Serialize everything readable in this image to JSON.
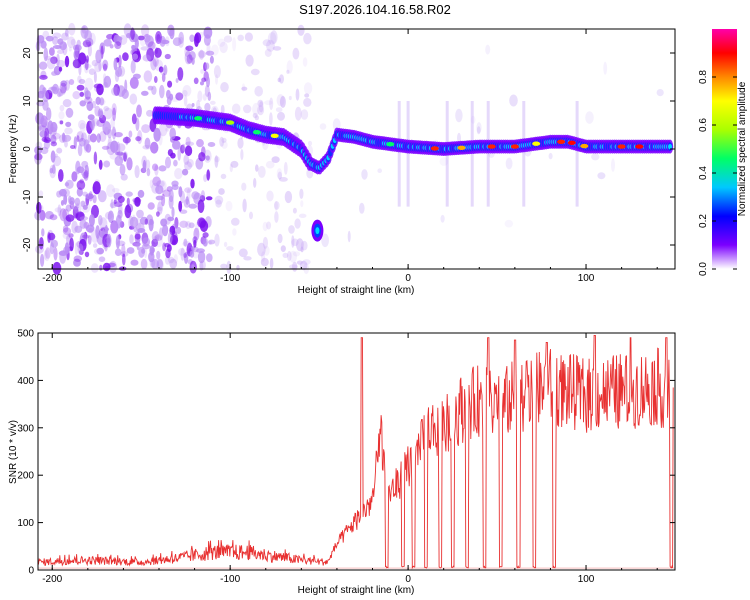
{
  "title": "S197.2026.104.16.58.R02",
  "colors": {
    "line": "#e83030",
    "axis": "#000000"
  },
  "chart_data": [
    {
      "type": "heatmap",
      "xlabel": "Height of straight line (km)",
      "ylabel": "Frequency (Hz)",
      "xlim": [
        -208,
        150
      ],
      "ylim": [
        -25,
        25
      ],
      "xticks": [
        -200,
        -100,
        0,
        100
      ],
      "yticks": [
        -20,
        -10,
        0,
        10,
        20
      ],
      "xtick_labels": [
        "-200",
        "-100",
        "0",
        "100"
      ],
      "ytick_labels": [
        "-20",
        "-10",
        "0",
        "10",
        "20"
      ],
      "ridge": [
        [
          -140,
          7
        ],
        [
          -120,
          6.5
        ],
        [
          -110,
          6
        ],
        [
          -100,
          5.5
        ],
        [
          -90,
          4
        ],
        [
          -80,
          3
        ],
        [
          -70,
          2.5
        ],
        [
          -60,
          0
        ],
        [
          -55,
          -3
        ],
        [
          -50,
          -4
        ],
        [
          -45,
          -2
        ],
        [
          -40,
          3
        ],
        [
          -30,
          2.5
        ],
        [
          -20,
          1.5
        ],
        [
          -10,
          1
        ],
        [
          0,
          0.5
        ],
        [
          20,
          0
        ],
        [
          40,
          0.5
        ],
        [
          60,
          0.5
        ],
        [
          80,
          1.5
        ],
        [
          90,
          1.5
        ],
        [
          100,
          0.5
        ],
        [
          120,
          0.5
        ],
        [
          140,
          0.5
        ]
      ],
      "colorbar": {
        "label": "Normalized spectral amplitude",
        "range": [
          0,
          1
        ],
        "ticks": [
          0.0,
          0.2,
          0.4,
          0.6,
          0.8
        ],
        "tick_labels": [
          "0.0",
          "0.2",
          "0.4",
          "0.6",
          "0.8"
        ],
        "stops": [
          "#ffffff",
          "#7b00ff",
          "#0000ff",
          "#00c8ff",
          "#00ff66",
          "#aaff00",
          "#ffff00",
          "#ff8800",
          "#ff0000",
          "#ff00aa"
        ]
      }
    },
    {
      "type": "line",
      "xlabel": "Height of straight line (km)",
      "ylabel": "SNR (10 * v/v)",
      "xlim": [
        -208,
        150
      ],
      "ylim": [
        0,
        500
      ],
      "xticks": [
        -200,
        -100,
        0,
        100
      ],
      "yticks": [
        0,
        100,
        200,
        300,
        400,
        500
      ],
      "xtick_labels": [
        "-200",
        "-100",
        "0",
        "100"
      ],
      "ytick_labels": [
        "0",
        "100",
        "200",
        "300",
        "400",
        "500"
      ],
      "envelope": [
        [
          -208,
          20
        ],
        [
          -180,
          25
        ],
        [
          -150,
          20
        ],
        [
          -130,
          30
        ],
        [
          -110,
          45
        ],
        [
          -90,
          45
        ],
        [
          -75,
          35
        ],
        [
          -60,
          25
        ],
        [
          -45,
          20
        ],
        [
          -40,
          60
        ],
        [
          -30,
          110
        ],
        [
          -20,
          160
        ],
        [
          -15,
          320
        ],
        [
          -12,
          170
        ],
        [
          -5,
          200
        ],
        [
          0,
          240
        ],
        [
          5,
          260
        ],
        [
          10,
          320
        ],
        [
          20,
          330
        ],
        [
          30,
          370
        ],
        [
          40,
          390
        ],
        [
          50,
          370
        ],
        [
          60,
          400
        ],
        [
          80,
          420
        ],
        [
          100,
          400
        ],
        [
          120,
          410
        ],
        [
          140,
          420
        ],
        [
          148,
          400
        ]
      ],
      "spikes": [
        [
          -26,
          490
        ],
        [
          45,
          490
        ],
        [
          60,
          485
        ],
        [
          78,
          480
        ],
        [
          105,
          495
        ],
        [
          125,
          490
        ],
        [
          145,
          490
        ]
      ],
      "dropouts": [
        -12,
        -3,
        3,
        10,
        18,
        25,
        33,
        43,
        52,
        62,
        71,
        82,
        148
      ]
    }
  ]
}
